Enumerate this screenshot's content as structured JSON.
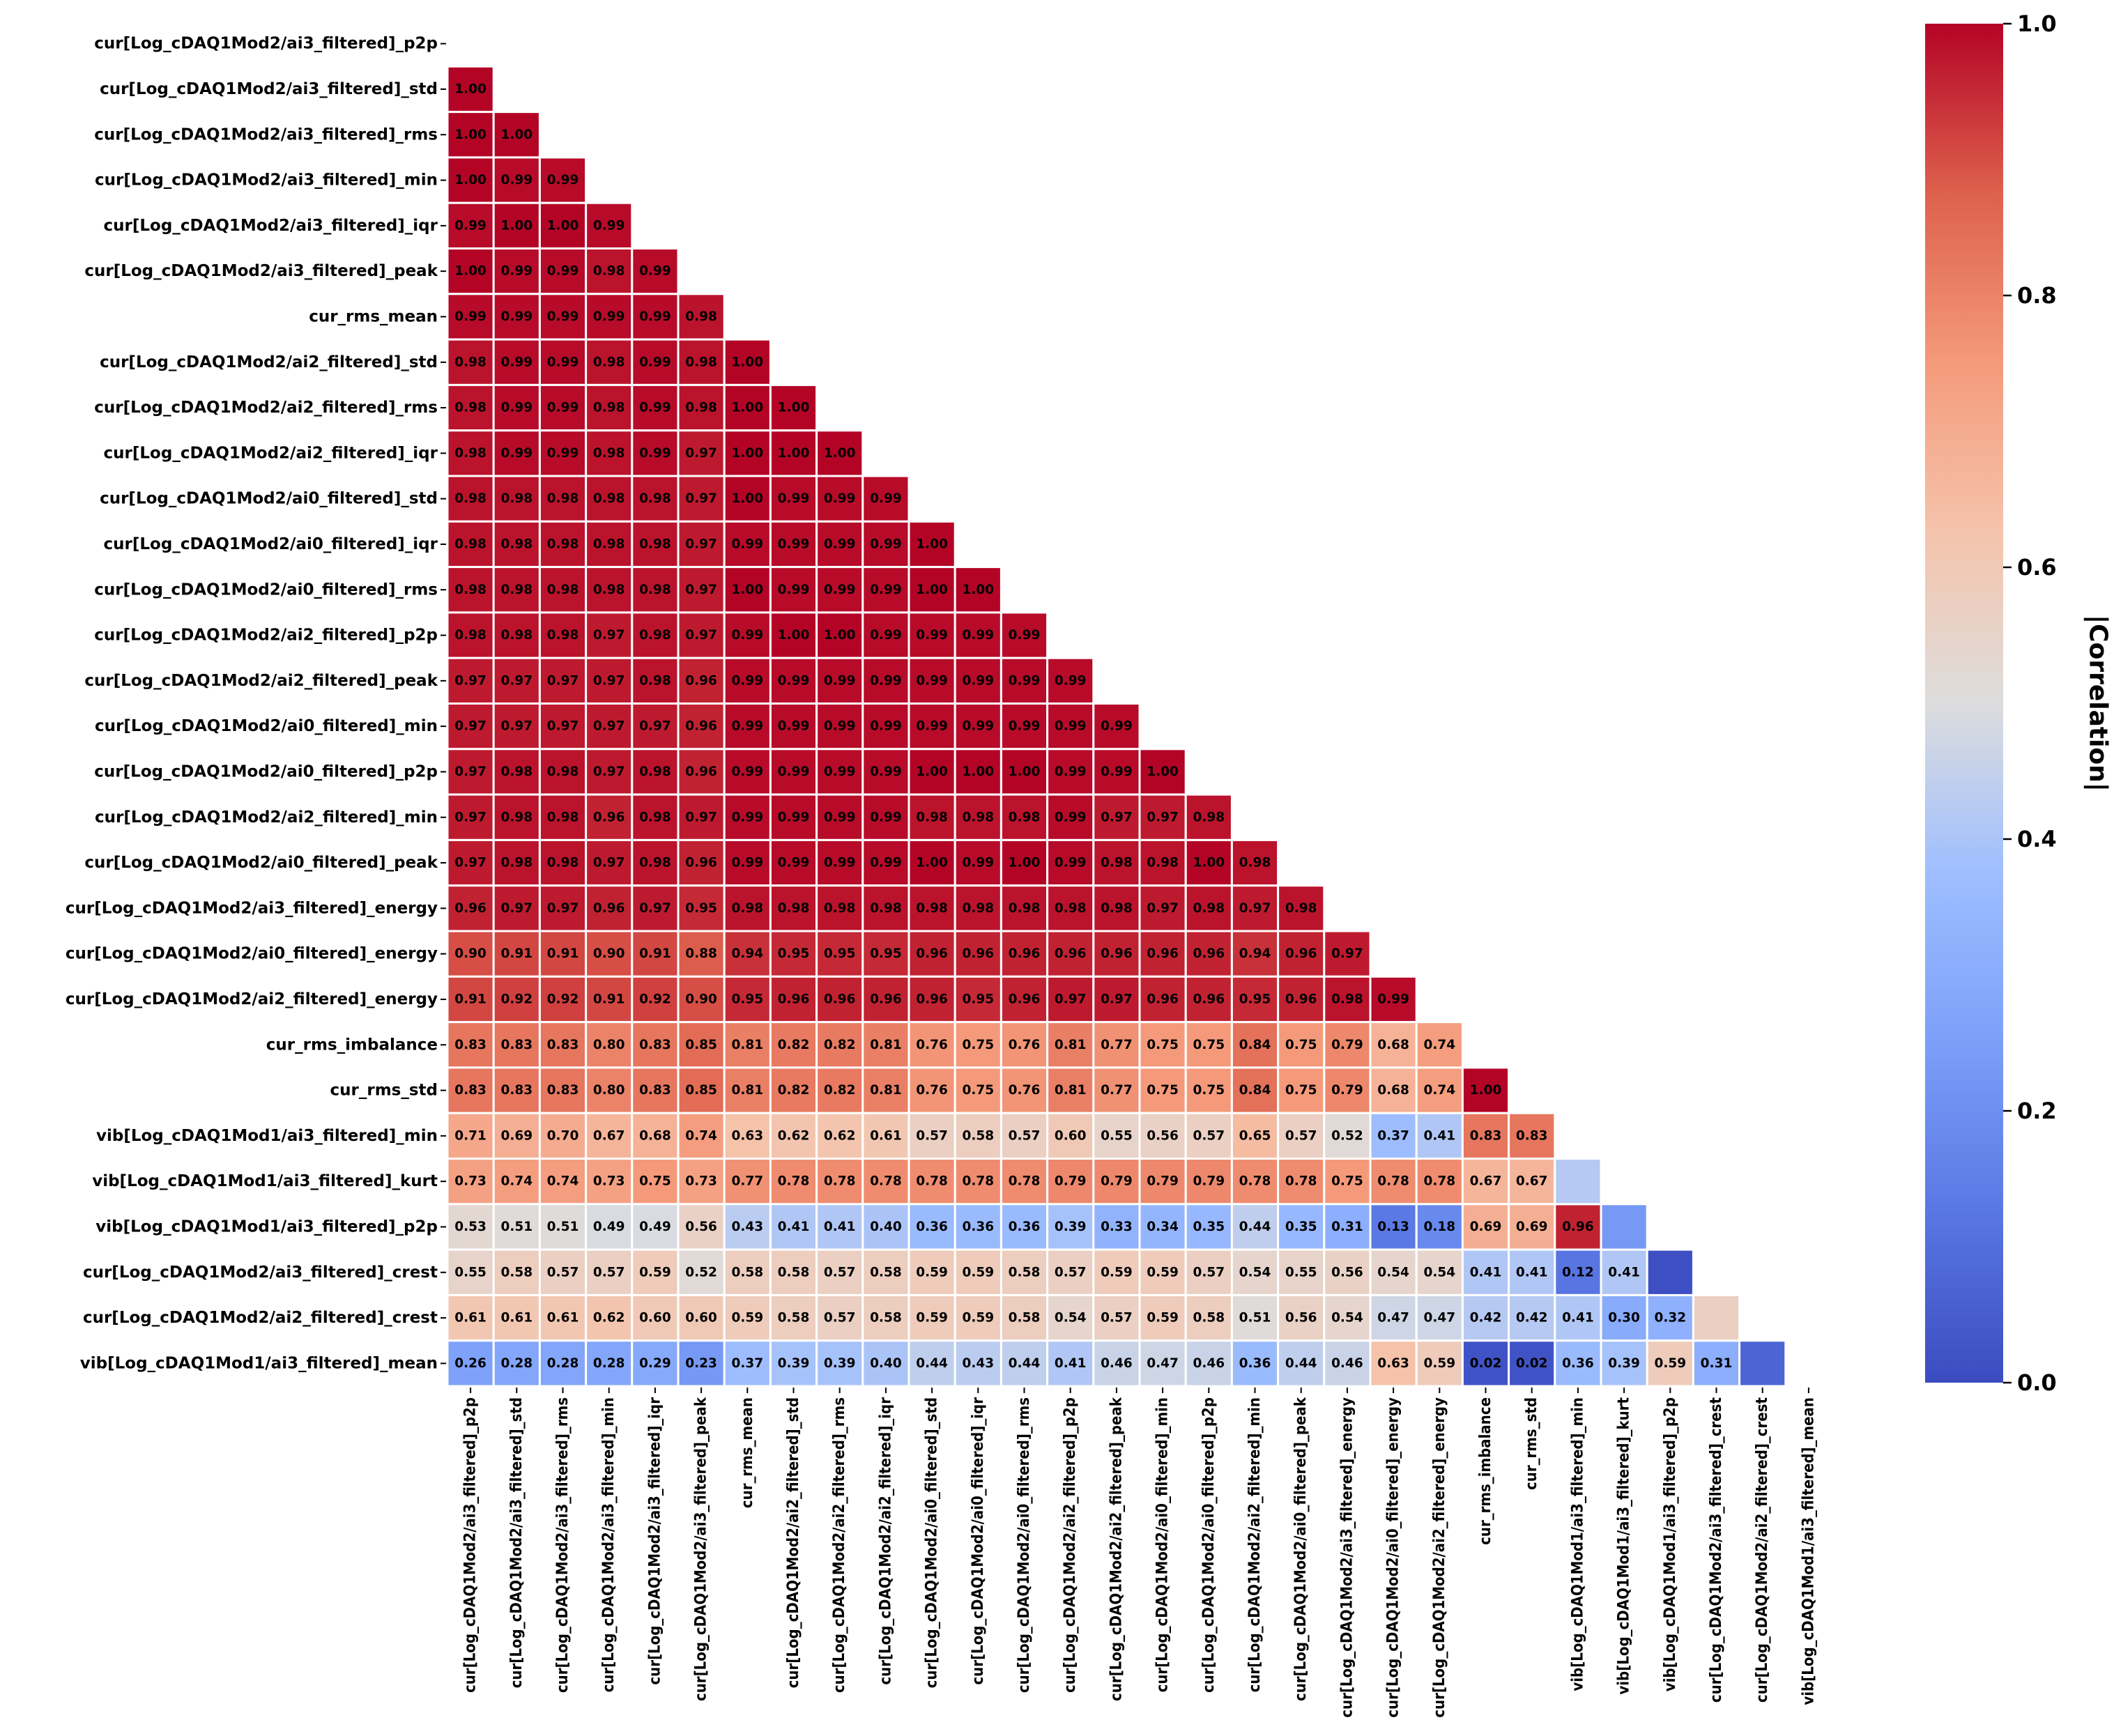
{
  "chart_data": {
    "type": "heatmap",
    "title": "",
    "variables": [
      "cur[Log_cDAQ1Mod2/ai3_filtered]_p2p",
      "cur[Log_cDAQ1Mod2/ai3_filtered]_std",
      "cur[Log_cDAQ1Mod2/ai3_filtered]_rms",
      "cur[Log_cDAQ1Mod2/ai3_filtered]_min",
      "cur[Log_cDAQ1Mod2/ai3_filtered]_iqr",
      "cur[Log_cDAQ1Mod2/ai3_filtered]_peak",
      "cur_rms_mean",
      "cur[Log_cDAQ1Mod2/ai2_filtered]_std",
      "cur[Log_cDAQ1Mod2/ai2_filtered]_rms",
      "cur[Log_cDAQ1Mod2/ai2_filtered]_iqr",
      "cur[Log_cDAQ1Mod2/ai0_filtered]_std",
      "cur[Log_cDAQ1Mod2/ai0_filtered]_iqr",
      "cur[Log_cDAQ1Mod2/ai0_filtered]_rms",
      "cur[Log_cDAQ1Mod2/ai2_filtered]_p2p",
      "cur[Log_cDAQ1Mod2/ai2_filtered]_peak",
      "cur[Log_cDAQ1Mod2/ai0_filtered]_min",
      "cur[Log_cDAQ1Mod2/ai0_filtered]_p2p",
      "cur[Log_cDAQ1Mod2/ai2_filtered]_min",
      "cur[Log_cDAQ1Mod2/ai0_filtered]_peak",
      "cur[Log_cDAQ1Mod2/ai3_filtered]_energy",
      "cur[Log_cDAQ1Mod2/ai0_filtered]_energy",
      "cur[Log_cDAQ1Mod2/ai2_filtered]_energy",
      "cur_rms_imbalance",
      "cur_rms_std",
      "vib[Log_cDAQ1Mod1/ai3_filtered]_min",
      "vib[Log_cDAQ1Mod1/ai3_filtered]_kurt",
      "vib[Log_cDAQ1Mod1/ai3_filtered]_p2p",
      "cur[Log_cDAQ1Mod2/ai3_filtered]_crest",
      "cur[Log_cDAQ1Mod2/ai2_filtered]_crest",
      "vib[Log_cDAQ1Mod1/ai3_filtered]_mean"
    ],
    "values_lower_triangle": [
      [],
      [
        1.0
      ],
      [
        1.0,
        1.0
      ],
      [
        1.0,
        0.99,
        0.99
      ],
      [
        0.99,
        1.0,
        1.0,
        0.99
      ],
      [
        1.0,
        0.99,
        0.99,
        0.98,
        0.99
      ],
      [
        0.99,
        0.99,
        0.99,
        0.99,
        0.99,
        0.98
      ],
      [
        0.98,
        0.99,
        0.99,
        0.98,
        0.99,
        0.98,
        1.0
      ],
      [
        0.98,
        0.99,
        0.99,
        0.98,
        0.99,
        0.98,
        1.0,
        1.0
      ],
      [
        0.98,
        0.99,
        0.99,
        0.98,
        0.99,
        0.97,
        1.0,
        1.0,
        1.0
      ],
      [
        0.98,
        0.98,
        0.98,
        0.98,
        0.98,
        0.97,
        1.0,
        0.99,
        0.99,
        0.99
      ],
      [
        0.98,
        0.98,
        0.98,
        0.98,
        0.98,
        0.97,
        0.99,
        0.99,
        0.99,
        0.99,
        1.0
      ],
      [
        0.98,
        0.98,
        0.98,
        0.98,
        0.98,
        0.97,
        1.0,
        0.99,
        0.99,
        0.99,
        1.0,
        1.0
      ],
      [
        0.98,
        0.98,
        0.98,
        0.97,
        0.98,
        0.97,
        0.99,
        1.0,
        1.0,
        0.99,
        0.99,
        0.99,
        0.99
      ],
      [
        0.97,
        0.97,
        0.97,
        0.97,
        0.98,
        0.96,
        0.99,
        0.99,
        0.99,
        0.99,
        0.99,
        0.99,
        0.99,
        0.99
      ],
      [
        0.97,
        0.97,
        0.97,
        0.97,
        0.97,
        0.96,
        0.99,
        0.99,
        0.99,
        0.99,
        0.99,
        0.99,
        0.99,
        0.99,
        0.99
      ],
      [
        0.97,
        0.98,
        0.98,
        0.97,
        0.98,
        0.96,
        0.99,
        0.99,
        0.99,
        0.99,
        1.0,
        1.0,
        1.0,
        0.99,
        0.99,
        1.0
      ],
      [
        0.97,
        0.98,
        0.98,
        0.96,
        0.98,
        0.97,
        0.99,
        0.99,
        0.99,
        0.99,
        0.98,
        0.98,
        0.98,
        0.99,
        0.97,
        0.97,
        0.98
      ],
      [
        0.97,
        0.98,
        0.98,
        0.97,
        0.98,
        0.96,
        0.99,
        0.99,
        0.99,
        0.99,
        1.0,
        0.99,
        1.0,
        0.99,
        0.98,
        0.98,
        1.0,
        0.98
      ],
      [
        0.96,
        0.97,
        0.97,
        0.96,
        0.97,
        0.95,
        0.98,
        0.98,
        0.98,
        0.98,
        0.98,
        0.98,
        0.98,
        0.98,
        0.98,
        0.97,
        0.98,
        0.97,
        0.98
      ],
      [
        0.9,
        0.91,
        0.91,
        0.9,
        0.91,
        0.88,
        0.94,
        0.95,
        0.95,
        0.95,
        0.96,
        0.96,
        0.96,
        0.96,
        0.96,
        0.96,
        0.96,
        0.94,
        0.96,
        0.97
      ],
      [
        0.91,
        0.92,
        0.92,
        0.91,
        0.92,
        0.9,
        0.95,
        0.96,
        0.96,
        0.96,
        0.96,
        0.95,
        0.96,
        0.97,
        0.97,
        0.96,
        0.96,
        0.95,
        0.96,
        0.98,
        0.99
      ],
      [
        0.83,
        0.83,
        0.83,
        0.8,
        0.83,
        0.85,
        0.81,
        0.82,
        0.82,
        0.81,
        0.76,
        0.75,
        0.76,
        0.81,
        0.77,
        0.75,
        0.75,
        0.84,
        0.75,
        0.79,
        0.68,
        0.74
      ],
      [
        0.83,
        0.83,
        0.83,
        0.8,
        0.83,
        0.85,
        0.81,
        0.82,
        0.82,
        0.81,
        0.76,
        0.75,
        0.76,
        0.81,
        0.77,
        0.75,
        0.75,
        0.84,
        0.75,
        0.79,
        0.68,
        0.74,
        1.0
      ],
      [
        0.71,
        0.69,
        0.7,
        0.67,
        0.68,
        0.74,
        0.63,
        0.62,
        0.62,
        0.61,
        0.57,
        0.58,
        0.57,
        0.6,
        0.55,
        0.56,
        0.57,
        0.65,
        0.57,
        0.52,
        0.37,
        0.41,
        0.83,
        0.83
      ],
      [
        0.73,
        0.74,
        0.74,
        0.73,
        0.75,
        0.73,
        0.77,
        0.78,
        0.78,
        0.78,
        0.78,
        0.78,
        0.78,
        0.79,
        0.79,
        0.79,
        0.79,
        0.78,
        0.78,
        0.75,
        0.78,
        0.78,
        0.67,
        0.67,
        0.42
      ],
      [
        0.53,
        0.51,
        0.51,
        0.49,
        0.49,
        0.56,
        0.43,
        0.41,
        0.41,
        0.4,
        0.36,
        0.36,
        0.36,
        0.39,
        0.33,
        0.34,
        0.35,
        0.44,
        0.35,
        0.31,
        0.13,
        0.18,
        0.69,
        0.69,
        0.96,
        0.23
      ],
      [
        0.55,
        0.58,
        0.57,
        0.57,
        0.59,
        0.52,
        0.58,
        0.58,
        0.57,
        0.58,
        0.59,
        0.59,
        0.58,
        0.57,
        0.59,
        0.59,
        0.57,
        0.54,
        0.55,
        0.56,
        0.54,
        0.54,
        0.41,
        0.41,
        0.12,
        0.41,
        0.01
      ],
      [
        0.61,
        0.61,
        0.61,
        0.62,
        0.6,
        0.6,
        0.59,
        0.58,
        0.57,
        0.58,
        0.59,
        0.59,
        0.58,
        0.54,
        0.57,
        0.59,
        0.58,
        0.51,
        0.56,
        0.54,
        0.47,
        0.47,
        0.42,
        0.42,
        0.41,
        0.3,
        0.32,
        0.57
      ],
      [
        0.26,
        0.28,
        0.28,
        0.28,
        0.29,
        0.23,
        0.37,
        0.39,
        0.39,
        0.4,
        0.44,
        0.43,
        0.44,
        0.41,
        0.46,
        0.47,
        0.46,
        0.36,
        0.44,
        0.46,
        0.63,
        0.59,
        0.02,
        0.02,
        0.36,
        0.39,
        0.59,
        0.31,
        0.07
      ]
    ],
    "masked_unlabeled_cells": [
      {
        "row": 25,
        "col": 24
      },
      {
        "row": 26,
        "col": 25
      },
      {
        "row": 27,
        "col": 26
      },
      {
        "row": 28,
        "col": 27
      },
      {
        "row": 29,
        "col": 28
      }
    ],
    "colorbar": {
      "label": "|Correlation|",
      "range": [
        0.0,
        1.0
      ],
      "ticks": [
        "0.0",
        "0.2",
        "0.4",
        "0.6",
        "0.8",
        "1.0"
      ],
      "colormap": "coolwarm",
      "low_color": "#3b4cc0",
      "mid_color": "#dddddd",
      "high_color": "#b40426"
    },
    "value_format": "2 decimals",
    "grid": false,
    "legend_placement": "right"
  }
}
